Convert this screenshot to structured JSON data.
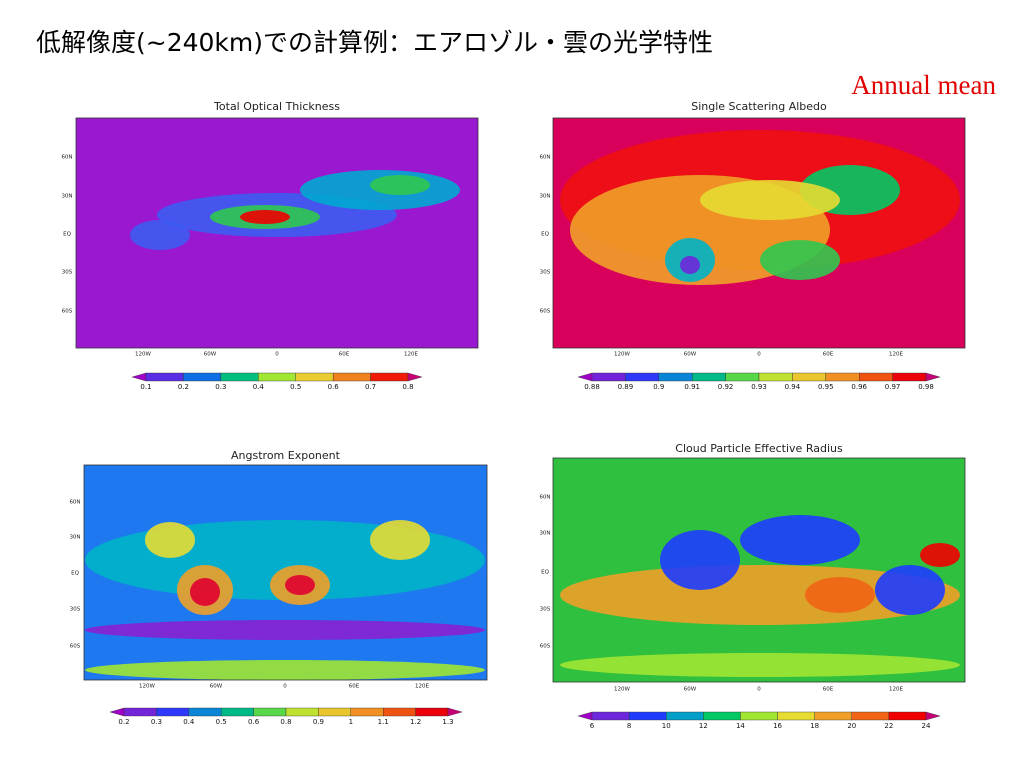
{
  "header": {
    "title": "低解像度(~240km)での計算例：エアロゾル・雲の光学特性",
    "subtitle": "Annual mean"
  },
  "panels": [
    {
      "title": "Total Optical Thickness",
      "lat_labels": [
        "60N",
        "30N",
        "EQ",
        "30S",
        "60S"
      ],
      "lon_labels": [
        "120W",
        "60W",
        "0",
        "60E",
        "120E"
      ],
      "colorbar": [
        0.1,
        0.2,
        0.3,
        0.4,
        0.5,
        0.6,
        0.7,
        0.8
      ]
    },
    {
      "title": "Single Scattering Albedo",
      "lat_labels": [
        "60N",
        "30N",
        "EQ",
        "30S",
        "60S"
      ],
      "lon_labels": [
        "120W",
        "60W",
        "0",
        "60E",
        "120E"
      ],
      "colorbar": [
        0.88,
        0.89,
        0.9,
        0.91,
        0.92,
        0.93,
        0.94,
        0.95,
        0.96,
        0.97,
        0.98
      ]
    },
    {
      "title": "Angstrom Exponent",
      "lat_labels": [
        "60N",
        "30N",
        "EQ",
        "30S",
        "60S"
      ],
      "lon_labels": [
        "120W",
        "60W",
        "0",
        "60E",
        "120E"
      ],
      "colorbar": [
        0.2,
        0.3,
        0.4,
        0.5,
        0.6,
        0.8,
        0.9,
        1,
        1.1,
        1.2,
        1.3
      ]
    },
    {
      "title": "Cloud Particle Effective Radius",
      "lat_labels": [
        "60N",
        "30N",
        "EQ",
        "30S",
        "60S"
      ],
      "lon_labels": [
        "120W",
        "60W",
        "0",
        "60E",
        "120E"
      ],
      "colorbar": [
        6,
        8,
        10,
        12,
        14,
        16,
        18,
        20,
        22,
        24
      ]
    }
  ]
}
